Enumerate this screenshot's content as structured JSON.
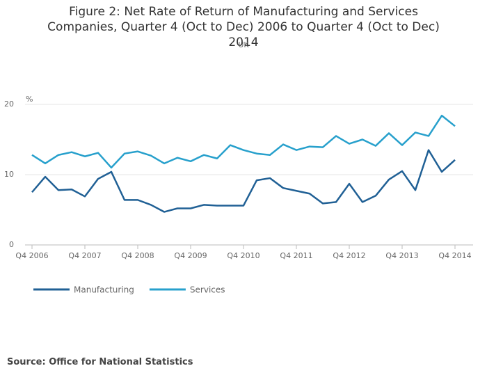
{
  "chart_data": {
    "type": "line",
    "title": "Figure 2: Net Rate of Return of Manufacturing and Services Companies, Quarter 4 (Oct to Dec) 2006 to Quarter 4 (Oct to Dec) 2014",
    "subtitle": "UK",
    "y_label": "%",
    "source": "Source: Office for National Statistics",
    "categories": [
      "Q4 2006",
      null,
      null,
      null,
      "Q4 2007",
      null,
      null,
      null,
      "Q4 2008",
      null,
      null,
      null,
      "Q4 2009",
      null,
      null,
      null,
      "Q4 2010",
      null,
      null,
      null,
      "Q4 2011",
      null,
      null,
      null,
      "Q4 2012",
      null,
      null,
      null,
      "Q4 2013",
      null,
      null,
      null,
      "Q4 2014"
    ],
    "series": [
      {
        "name": "Manufacturing",
        "color": "#206095",
        "values": [
          7.5,
          9.7,
          7.8,
          7.9,
          6.9,
          9.4,
          10.4,
          6.4,
          6.4,
          5.7,
          4.7,
          5.2,
          5.2,
          5.7,
          5.6,
          5.6,
          5.6,
          9.2,
          9.5,
          8.1,
          7.7,
          7.3,
          5.9,
          6.1,
          8.7,
          6.1,
          7.0,
          9.3,
          10.5,
          7.8,
          13.5,
          10.4,
          12.1
        ]
      },
      {
        "name": "Services",
        "color": "#27a0cc",
        "values": [
          12.8,
          11.6,
          12.8,
          13.2,
          12.6,
          13.1,
          11.0,
          13.0,
          13.3,
          12.7,
          11.6,
          12.4,
          11.9,
          12.8,
          12.3,
          14.2,
          13.5,
          13.0,
          12.8,
          14.3,
          13.5,
          14.0,
          13.9,
          15.5,
          14.4,
          15.0,
          14.1,
          15.9,
          14.2,
          16.0,
          15.5,
          18.4,
          16.9
        ]
      }
    ],
    "ylim": [
      0,
      20
    ],
    "yticks": [
      0,
      10,
      20
    ],
    "grid": true
  }
}
